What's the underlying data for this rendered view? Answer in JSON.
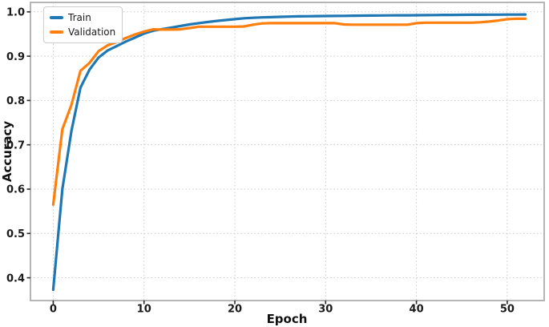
{
  "figure": {
    "background": "#ffffff"
  },
  "legend": {
    "position": "upper left",
    "items": [
      {
        "label": "Train",
        "color": "#1f77b4"
      },
      {
        "label": "Validation",
        "color": "#ff7f0e"
      }
    ]
  },
  "style": {
    "grid_color": "#c9c9c9",
    "spine_color": "#b5b5b5",
    "tick_color": "#2b2b2b",
    "line_width": 3.2
  },
  "chart_data": {
    "type": "line",
    "title": "",
    "xlabel": "Epoch",
    "ylabel": "Accuracy",
    "xlim": [
      -2.51,
      54.07
    ],
    "ylim": [
      0.3486,
      1.0213
    ],
    "x_ticks": [
      0,
      10,
      20,
      30,
      40,
      50
    ],
    "x_tick_labels": [
      "0",
      "10",
      "20",
      "30",
      "40",
      "50"
    ],
    "y_ticks": [
      0.4,
      0.5,
      0.6,
      0.7,
      0.8,
      0.9,
      1.0
    ],
    "y_tick_labels": [
      "0.4",
      "0.5",
      "0.6",
      "0.7",
      "0.8",
      "0.9",
      "1.0"
    ],
    "grid": "dotted, both axes",
    "legend_position": "upper left",
    "x": [
      0,
      1,
      2,
      3,
      4,
      5,
      6,
      7,
      8,
      9,
      10,
      11,
      12,
      13,
      14,
      15,
      16,
      17,
      18,
      19,
      20,
      21,
      22,
      23,
      24,
      25,
      26,
      27,
      28,
      29,
      30,
      31,
      32,
      33,
      34,
      35,
      36,
      37,
      38,
      39,
      40,
      41,
      42,
      43,
      44,
      45,
      46,
      47,
      48,
      49,
      50,
      51,
      52
    ],
    "series": [
      {
        "name": "Train",
        "color": "#1f77b4",
        "values": [
          0.373,
          0.6,
          0.731,
          0.829,
          0.87,
          0.897,
          0.913,
          0.923,
          0.933,
          0.942,
          0.951,
          0.9575,
          0.961,
          0.9645,
          0.968,
          0.9715,
          0.9745,
          0.977,
          0.9795,
          0.9815,
          0.9835,
          0.9855,
          0.9865,
          0.9875,
          0.988,
          0.9888,
          0.9893,
          0.9898,
          0.99,
          0.9903,
          0.9905,
          0.9908,
          0.991,
          0.9912,
          0.9914,
          0.9916,
          0.9918,
          0.992,
          0.9921,
          0.9922,
          0.9924,
          0.9926,
          0.9928,
          0.993,
          0.9931,
          0.9932,
          0.9934,
          0.9935,
          0.9936,
          0.9937,
          0.9938,
          0.9939,
          0.994
        ]
      },
      {
        "name": "Validation",
        "color": "#ff7f0e",
        "values": [
          0.565,
          0.735,
          0.79,
          0.867,
          0.885,
          0.9115,
          0.9245,
          0.932,
          0.941,
          0.949,
          0.9555,
          0.9605,
          0.96,
          0.96,
          0.9605,
          0.9635,
          0.9665,
          0.9665,
          0.9665,
          0.9665,
          0.9665,
          0.967,
          0.971,
          0.974,
          0.9745,
          0.9745,
          0.9745,
          0.9745,
          0.9745,
          0.9745,
          0.9745,
          0.9745,
          0.9715,
          0.971,
          0.971,
          0.971,
          0.971,
          0.971,
          0.971,
          0.971,
          0.9745,
          0.9755,
          0.9755,
          0.9755,
          0.9755,
          0.9755,
          0.9755,
          0.9765,
          0.978,
          0.9805,
          0.9835,
          0.9845,
          0.9845
        ]
      }
    ]
  }
}
